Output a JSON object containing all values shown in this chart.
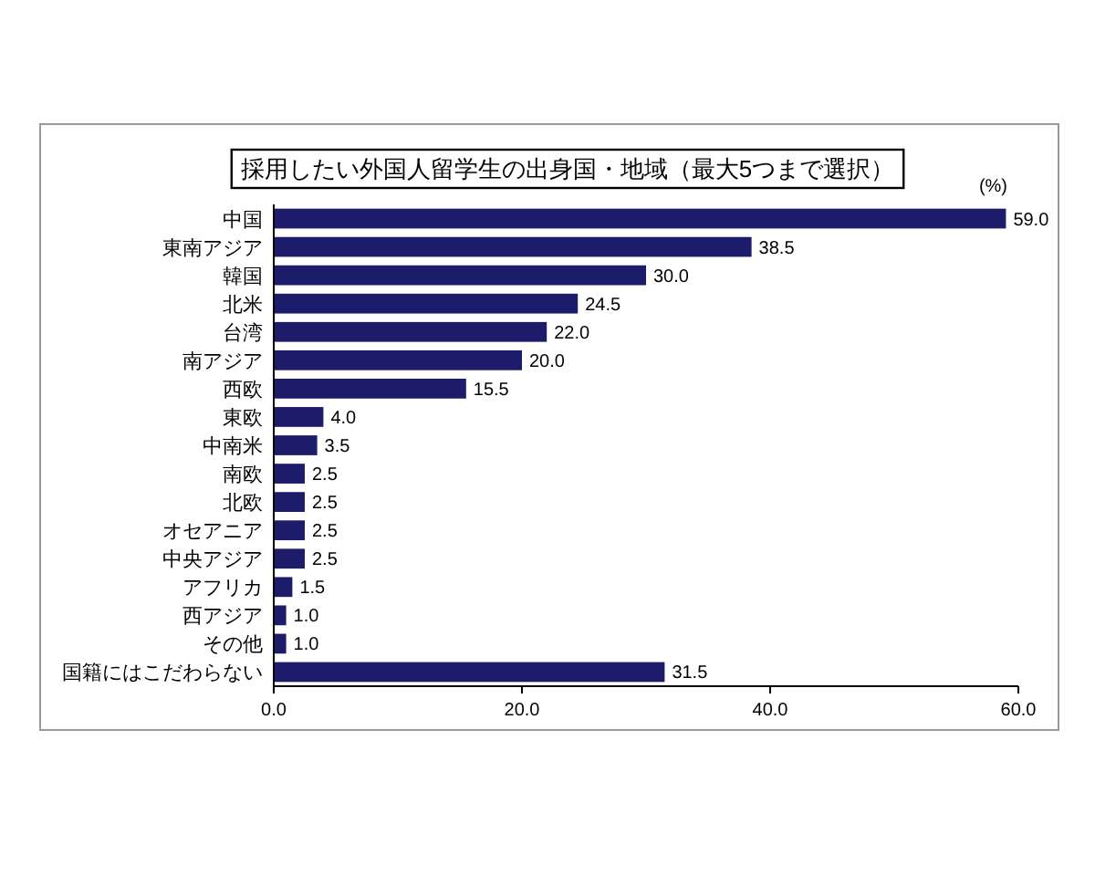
{
  "chart_data": {
    "type": "bar",
    "orientation": "horizontal",
    "title": "採用したい外国人留学生の出身国・地域（最大5つまで選択）",
    "categories": [
      "中国",
      "東南アジア",
      "韓国",
      "北米",
      "台湾",
      "南アジア",
      "西欧",
      "東欧",
      "中南米",
      "南欧",
      "北欧",
      "オセアニア",
      "中央アジア",
      "アフリカ",
      "西アジア",
      "その他",
      "国籍にはこだわらない"
    ],
    "values": [
      59.0,
      38.5,
      30.0,
      24.5,
      22.0,
      20.0,
      15.5,
      4.0,
      3.5,
      2.5,
      2.5,
      2.5,
      2.5,
      1.5,
      1.0,
      1.0,
      31.5
    ],
    "value_labels": [
      "59.0",
      "38.5",
      "30.0",
      "24.5",
      "22.0",
      "20.0",
      "15.5",
      "4.0",
      "3.5",
      "2.5",
      "2.5",
      "2.5",
      "2.5",
      "1.5",
      "1.0",
      "1.0",
      "31.5"
    ],
    "color": "#1c1c6b",
    "xlim": [
      0,
      60
    ],
    "xticks": [
      {
        "value": 0,
        "label": "0.0"
      },
      {
        "value": 20,
        "label": "20.0"
      },
      {
        "value": 40,
        "label": "40.0"
      },
      {
        "value": 60,
        "label": "60.0"
      }
    ],
    "annotations": [
      "(%)"
    ]
  }
}
